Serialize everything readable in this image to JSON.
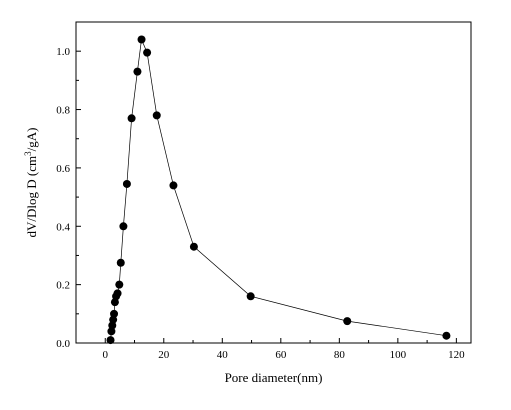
{
  "chart_data": {
    "type": "line",
    "title": "",
    "xlabel": "Pore diameter(nm)",
    "ylabel_parts": {
      "prefix": "dV/Dlog D (cm",
      "superscript": "3",
      "suffix": "/gA)"
    },
    "xlim": [
      -10,
      125
    ],
    "ylim": [
      0,
      1.1
    ],
    "xticks": [
      0,
      20,
      40,
      60,
      80,
      100,
      120
    ],
    "xtick_labels": [
      "0",
      "20",
      "40",
      "60",
      "80",
      "100",
      "120"
    ],
    "yticks": [
      0.0,
      0.2,
      0.4,
      0.6,
      0.8,
      1.0
    ],
    "ytick_labels": [
      "0.0",
      "0.2",
      "0.4",
      "0.6",
      "0.8",
      "1.0"
    ],
    "grid": false,
    "legend": "none",
    "series": [
      {
        "marker": "filled-circle",
        "color": "#000000",
        "x": [
          1.8,
          2.1,
          2.4,
          2.7,
          3.0,
          3.3,
          3.7,
          4.2,
          4.8,
          5.3,
          6.2,
          7.4,
          9.0,
          11.0,
          12.4,
          14.3,
          17.6,
          23.3,
          30.3,
          49.7,
          82.7,
          116.6
        ],
        "y": [
          0.01,
          0.04,
          0.06,
          0.08,
          0.1,
          0.14,
          0.16,
          0.17,
          0.2,
          0.275,
          0.4,
          0.545,
          0.77,
          0.93,
          1.04,
          0.995,
          0.78,
          0.54,
          0.33,
          0.16,
          0.075,
          0.025
        ]
      }
    ]
  }
}
